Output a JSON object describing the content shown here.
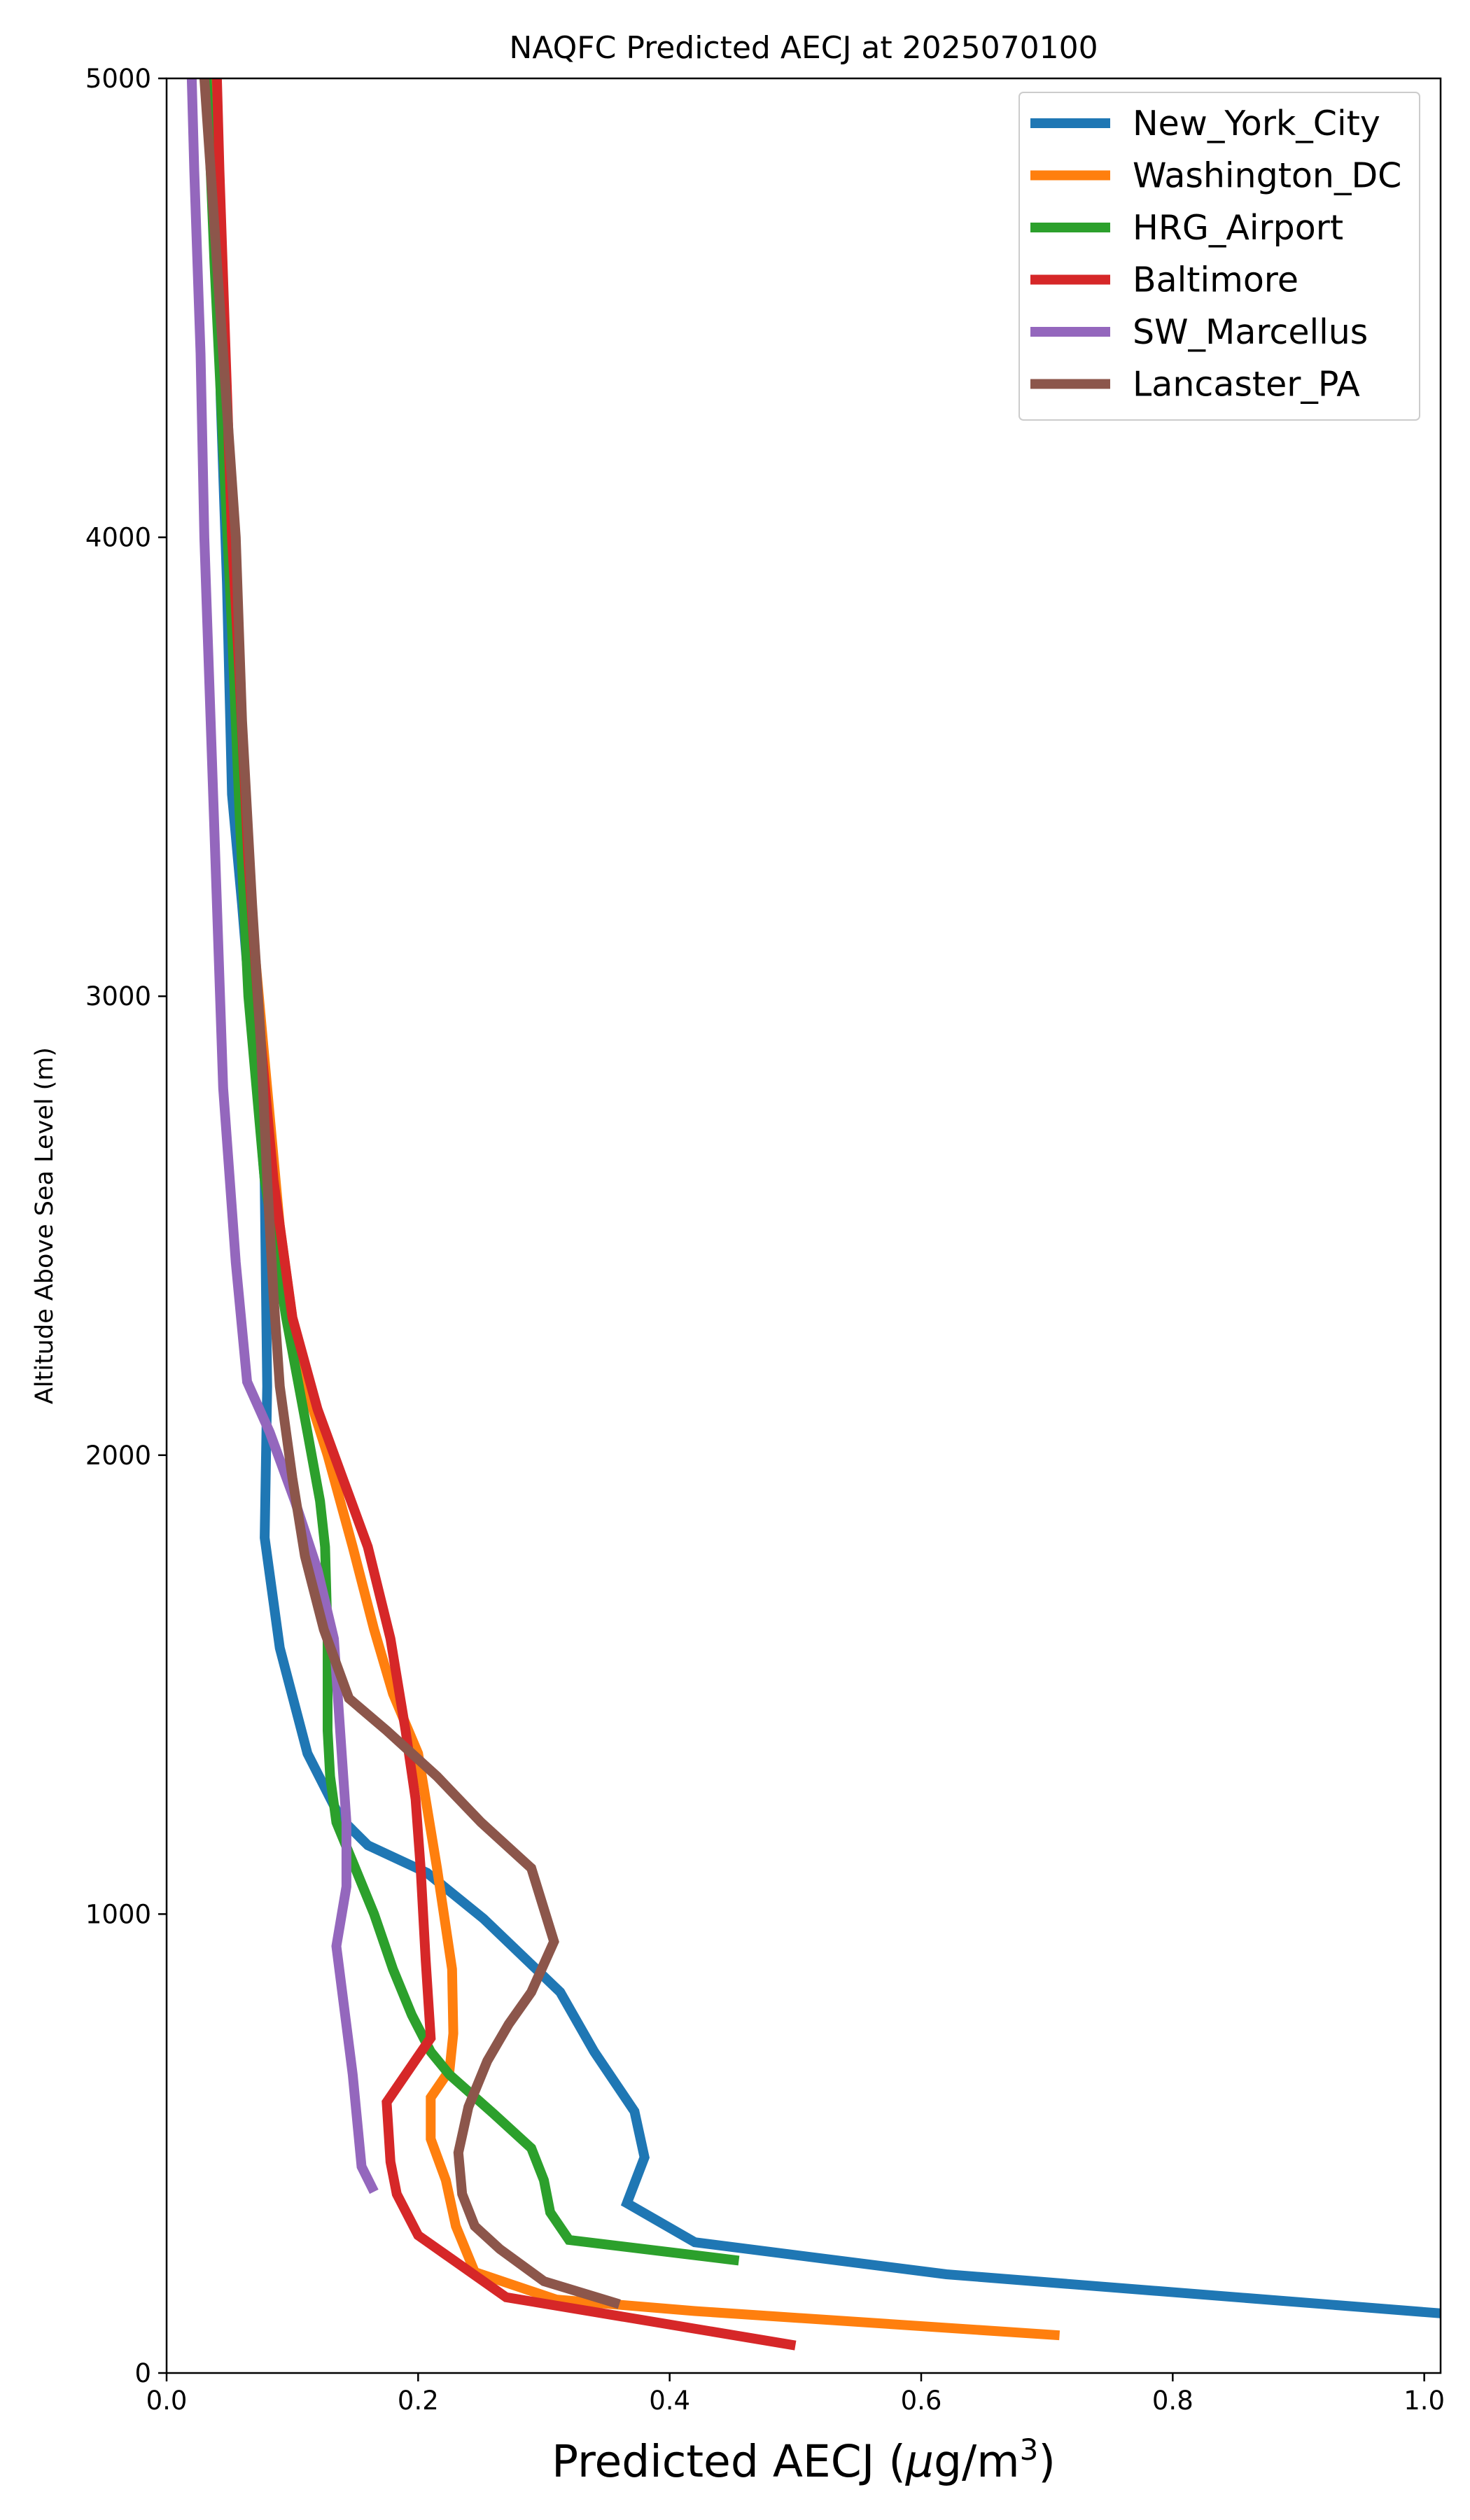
{
  "chart_data": {
    "type": "line",
    "title": "NAQFC Predicted AECJ at 2025070100",
    "xlabel_prefix": "Predicted AECJ (",
    "xlabel_mu": "μ",
    "xlabel_unit": "g/m",
    "xlabel_sup": "3",
    "xlabel_suffix": ")",
    "ylabel": "Altitude Above Sea Level (m)",
    "xlim": [
      0,
      1.013
    ],
    "ylim": [
      0,
      5000
    ],
    "xticks": [
      "0.0",
      "0.2",
      "0.4",
      "0.6",
      "0.8",
      "1.0"
    ],
    "yticks": [
      "0",
      "1000",
      "2000",
      "3000",
      "4000",
      "5000"
    ],
    "grid": false,
    "legend_position": "top-right",
    "series": [
      {
        "name": "New_York_City",
        "color": "#1f77b4",
        "points": [
          [
            1.013,
            130
          ],
          [
            0.62,
            215
          ],
          [
            0.42,
            285
          ],
          [
            0.366,
            370
          ],
          [
            0.38,
            470
          ],
          [
            0.372,
            570
          ],
          [
            0.34,
            700
          ],
          [
            0.313,
            830
          ],
          [
            0.252,
            990
          ],
          [
            0.207,
            1090
          ],
          [
            0.16,
            1150
          ],
          [
            0.138,
            1210
          ],
          [
            0.112,
            1350
          ],
          [
            0.09,
            1580
          ],
          [
            0.078,
            1820
          ],
          [
            0.08,
            2150
          ],
          [
            0.078,
            2600
          ],
          [
            0.06,
            3200
          ],
          [
            0.052,
            3440
          ],
          [
            0.048,
            3900
          ],
          [
            0.043,
            4300
          ],
          [
            0.038,
            5000
          ]
        ]
      },
      {
        "name": "Washington_DC",
        "color": "#ff7f0e",
        "points": [
          [
            0.71,
            82
          ],
          [
            0.42,
            135
          ],
          [
            0.31,
            160
          ],
          [
            0.245,
            220
          ],
          [
            0.23,
            320
          ],
          [
            0.222,
            420
          ],
          [
            0.21,
            510
          ],
          [
            0.21,
            600
          ],
          [
            0.225,
            660
          ],
          [
            0.228,
            740
          ],
          [
            0.227,
            880
          ],
          [
            0.215,
            1100
          ],
          [
            0.2,
            1350
          ],
          [
            0.18,
            1480
          ],
          [
            0.165,
            1620
          ],
          [
            0.148,
            1800
          ],
          [
            0.128,
            2000
          ],
          [
            0.105,
            2200
          ],
          [
            0.09,
            2500
          ],
          [
            0.08,
            2800
          ],
          [
            0.07,
            3100
          ],
          [
            0.062,
            3450
          ],
          [
            0.052,
            3900
          ],
          [
            0.045,
            4300
          ],
          [
            0.038,
            4700
          ],
          [
            0.035,
            5000
          ]
        ]
      },
      {
        "name": "HRG_Airport",
        "color": "#2ca02c",
        "points": [
          [
            0.455,
            245
          ],
          [
            0.32,
            290
          ],
          [
            0.305,
            350
          ],
          [
            0.3,
            420
          ],
          [
            0.29,
            490
          ],
          [
            0.26,
            565
          ],
          [
            0.225,
            650
          ],
          [
            0.21,
            700
          ],
          [
            0.195,
            780
          ],
          [
            0.18,
            880
          ],
          [
            0.165,
            1000
          ],
          [
            0.15,
            1100
          ],
          [
            0.135,
            1200
          ],
          [
            0.13,
            1300
          ],
          [
            0.128,
            1400
          ],
          [
            0.128,
            1600
          ],
          [
            0.126,
            1800
          ],
          [
            0.122,
            1900
          ],
          [
            0.112,
            2050
          ],
          [
            0.095,
            2300
          ],
          [
            0.078,
            2600
          ],
          [
            0.065,
            3000
          ],
          [
            0.058,
            3400
          ],
          [
            0.052,
            3800
          ],
          [
            0.045,
            4200
          ],
          [
            0.038,
            4600
          ],
          [
            0.032,
            5000
          ]
        ]
      },
      {
        "name": "Baltimore",
        "color": "#d62728",
        "points": [
          [
            0.5,
            60
          ],
          [
            0.27,
            165
          ],
          [
            0.2,
            300
          ],
          [
            0.183,
            390
          ],
          [
            0.178,
            460
          ],
          [
            0.175,
            590
          ],
          [
            0.2,
            690
          ],
          [
            0.21,
            730
          ],
          [
            0.206,
            900
          ],
          [
            0.202,
            1100
          ],
          [
            0.198,
            1250
          ],
          [
            0.19,
            1400
          ],
          [
            0.178,
            1600
          ],
          [
            0.16,
            1800
          ],
          [
            0.14,
            1950
          ],
          [
            0.12,
            2100
          ],
          [
            0.1,
            2300
          ],
          [
            0.085,
            2600
          ],
          [
            0.075,
            2900
          ],
          [
            0.065,
            3300
          ],
          [
            0.058,
            3700
          ],
          [
            0.052,
            4000
          ],
          [
            0.047,
            4400
          ],
          [
            0.042,
            4800
          ],
          [
            0.04,
            5000
          ]
        ]
      },
      {
        "name": "SW_Marcellus",
        "color": "#9467bd",
        "points": [
          [
            0.165,
            395
          ],
          [
            0.155,
            450
          ],
          [
            0.148,
            650
          ],
          [
            0.135,
            930
          ],
          [
            0.143,
            1060
          ],
          [
            0.143,
            1200
          ],
          [
            0.138,
            1400
          ],
          [
            0.133,
            1600
          ],
          [
            0.12,
            1750
          ],
          [
            0.102,
            1900
          ],
          [
            0.082,
            2050
          ],
          [
            0.064,
            2160
          ],
          [
            0.055,
            2420
          ],
          [
            0.045,
            2800
          ],
          [
            0.04,
            3200
          ],
          [
            0.035,
            3600
          ],
          [
            0.03,
            4000
          ],
          [
            0.027,
            4400
          ],
          [
            0.022,
            4800
          ],
          [
            0.02,
            5000
          ]
        ]
      },
      {
        "name": "Lancaster_PA",
        "color": "#8c564b",
        "points": [
          [
            0.36,
            150
          ],
          [
            0.3,
            200
          ],
          [
            0.265,
            270
          ],
          [
            0.245,
            320
          ],
          [
            0.235,
            390
          ],
          [
            0.232,
            480
          ],
          [
            0.24,
            580
          ],
          [
            0.255,
            680
          ],
          [
            0.272,
            760
          ],
          [
            0.29,
            830
          ],
          [
            0.308,
            940
          ],
          [
            0.29,
            1100
          ],
          [
            0.25,
            1200
          ],
          [
            0.215,
            1300
          ],
          [
            0.175,
            1400
          ],
          [
            0.145,
            1470
          ],
          [
            0.125,
            1620
          ],
          [
            0.11,
            1780
          ],
          [
            0.1,
            1950
          ],
          [
            0.09,
            2150
          ],
          [
            0.085,
            2350
          ],
          [
            0.08,
            2600
          ],
          [
            0.075,
            2900
          ],
          [
            0.068,
            3200
          ],
          [
            0.06,
            3600
          ],
          [
            0.055,
            4000
          ],
          [
            0.045,
            4400
          ],
          [
            0.035,
            4800
          ],
          [
            0.03,
            5000
          ]
        ]
      }
    ]
  }
}
